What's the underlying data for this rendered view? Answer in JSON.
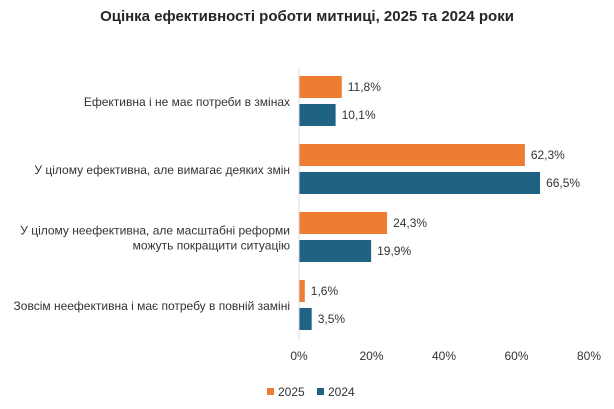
{
  "chart_data": {
    "type": "bar",
    "orientation": "horizontal",
    "title": "Оцінка ефективності роботи митниці, 2025 та 2024 роки",
    "categories": [
      [
        "Ефективна і не має потреби в змінах"
      ],
      [
        "У цілому ефективна, але вимагає деяких змін"
      ],
      [
        "У цілому неефективна, але масштабні реформи",
        "можуть покращити ситуацію"
      ],
      [
        "Зовсім неефективна і має потребу в повній заміні"
      ]
    ],
    "series": [
      {
        "name": "2025",
        "color": "#ED7D31",
        "values": [
          11.8,
          62.3,
          24.3,
          1.6
        ],
        "labels": [
          "11,8%",
          "62,3%",
          "24,3%",
          "1,6%"
        ]
      },
      {
        "name": "2024",
        "color": "#1F6384",
        "values": [
          10.1,
          66.5,
          19.9,
          3.5
        ],
        "labels": [
          "10,1%",
          "66,5%",
          "19,9%",
          "3,5%"
        ]
      }
    ],
    "xlim": [
      0,
      80
    ],
    "x_ticks": [
      0,
      20,
      40,
      60,
      80
    ],
    "x_tick_labels": [
      "0%",
      "20%",
      "40%",
      "60%",
      "80%"
    ],
    "unit": "%",
    "legend_position": "bottom",
    "grid": false
  }
}
